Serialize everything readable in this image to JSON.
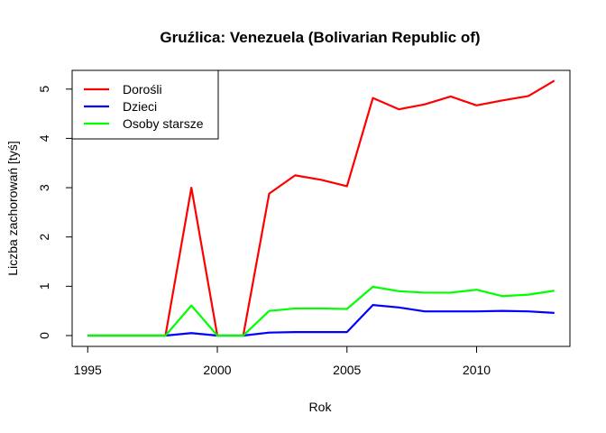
{
  "chart_data": {
    "type": "line",
    "title": "Gruźlica: Venezuela (Bolivarian Republic of)",
    "xlabel": "Rok",
    "ylabel": "Liczba zachorowań [tyś]",
    "xlim": [
      1994.4,
      2013.6
    ],
    "ylim": [
      -0.22,
      5.38
    ],
    "xticks": [
      1995,
      2000,
      2005,
      2010
    ],
    "yticks": [
      0,
      1,
      2,
      3,
      4,
      5
    ],
    "grid": false,
    "legend_position": "top-left",
    "x": [
      1995,
      1996,
      1997,
      1998,
      1999,
      2000,
      2001,
      2002,
      2003,
      2004,
      2005,
      2006,
      2007,
      2008,
      2009,
      2010,
      2011,
      2012,
      2013
    ],
    "series": [
      {
        "name": "Dorośli",
        "color": "#ff0000",
        "values": [
          0,
          0,
          0,
          0,
          3.0,
          0,
          0,
          2.88,
          3.25,
          3.16,
          3.03,
          4.82,
          4.59,
          4.69,
          4.85,
          4.67,
          4.77,
          4.86,
          5.17
        ]
      },
      {
        "name": "Dzieci",
        "color": "#0000ff",
        "values": [
          0,
          0,
          0,
          0,
          0.05,
          0,
          0,
          0.06,
          0.07,
          0.07,
          0.07,
          0.62,
          0.57,
          0.49,
          0.49,
          0.49,
          0.5,
          0.49,
          0.46
        ]
      },
      {
        "name": "Osoby starsze",
        "color": "#00ff00",
        "values": [
          0,
          0,
          0,
          0,
          0.61,
          0,
          0,
          0.5,
          0.55,
          0.55,
          0.54,
          0.99,
          0.9,
          0.87,
          0.87,
          0.93,
          0.8,
          0.83,
          0.91
        ]
      }
    ]
  }
}
